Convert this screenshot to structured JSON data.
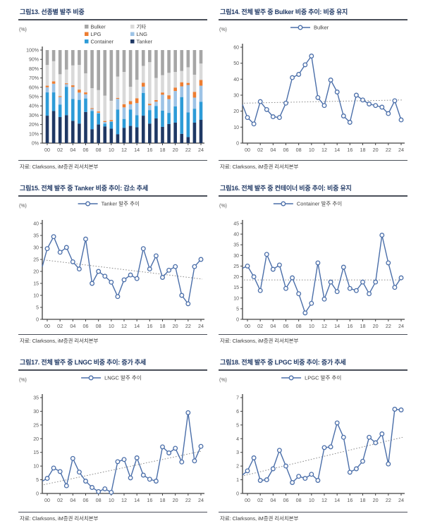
{
  "source_label": "자료: Clarksons, iM증권 리서치본부",
  "years": [
    "00",
    "01",
    "02",
    "03",
    "04",
    "05",
    "06",
    "07",
    "08",
    "09",
    "10",
    "11",
    "12",
    "13",
    "14",
    "15",
    "16",
    "17",
    "18",
    "19",
    "20",
    "21",
    "22",
    "23",
    "24"
  ],
  "x_ticklabels": [
    "00",
    "02",
    "04",
    "06",
    "08",
    "10",
    "12",
    "14",
    "16",
    "18",
    "20",
    "22",
    "24"
  ],
  "colors": {
    "line": "#4a6ea9",
    "trend": "#8c8c8c",
    "axis": "#404040",
    "tick_label": "#595959",
    "title": "#1f3864",
    "rule": "#4a4f59",
    "source_text": "#3f3f3f",
    "tanker": "#1f3864",
    "container": "#2d9bd7",
    "lng": "#9dc3e6",
    "lpg": "#ed7d31",
    "other": "#d9d9d9",
    "bulker": "#a6a6a6"
  },
  "chart_data": [
    {
      "id": "fig13",
      "type": "bar-stacked",
      "title": "그림13. 선종별 발주 비중",
      "unit": "(%)",
      "ylim": [
        0,
        100
      ],
      "ytick": 10,
      "ylabel_suffix": "%",
      "legend": [
        {
          "label": "Bulker",
          "color": "#a6a6a6"
        },
        {
          "label": "기타",
          "color": "#d9d9d9"
        },
        {
          "label": "LPG",
          "color": "#ed7d31"
        },
        {
          "label": "LNG",
          "color": "#9dc3e6"
        },
        {
          "label": "Container",
          "color": "#2d9bd7"
        },
        {
          "label": "Tanker",
          "color": "#1f3864"
        }
      ],
      "series": [
        {
          "name": "Tanker",
          "color": "#1f3864",
          "values": [
            29.5,
            34.5,
            28,
            30,
            24,
            21,
            33.5,
            15,
            20,
            18,
            15.5,
            9.5,
            16.5,
            18.5,
            17,
            29.5,
            21,
            26.5,
            17.5,
            20.5,
            22,
            10,
            6.5,
            22,
            25
          ]
        },
        {
          "name": "Container",
          "color": "#2d9bd7",
          "values": [
            25,
            20,
            13.5,
            30.5,
            23.5,
            25.5,
            14.5,
            19.5,
            12,
            3,
            7.5,
            26.5,
            9.5,
            17.5,
            13,
            24.5,
            14.5,
            13.5,
            17.5,
            12,
            17.5,
            39.5,
            26.5,
            15,
            19.5
          ]
        },
        {
          "name": "LNG",
          "color": "#9dc3e6",
          "values": [
            5.5,
            9.3,
            8,
            2.8,
            12.8,
            7.8,
            4.5,
            2.2,
            0.7,
            1.7,
            0.4,
            11.6,
            12.4,
            5.7,
            13,
            6.7,
            5.2,
            4.5,
            17,
            14.8,
            16.5,
            11.5,
            29.5,
            11.9,
            17.2
          ]
        },
        {
          "name": "LPG",
          "color": "#ed7d31",
          "values": [
            1.7,
            2.6,
            1,
            1,
            1.8,
            3.2,
            2,
            0.8,
            1.3,
            1.1,
            1.4,
            1,
            3.4,
            3.4,
            5.2,
            4.1,
            1.6,
            1.8,
            2.4,
            4.1,
            3.7,
            4.4,
            2.2,
            6.2,
            6.1
          ]
        },
        {
          "name": "기타",
          "color": "#d9d9d9",
          "values": [
            22.3,
            21.6,
            23.5,
            14.7,
            21.4,
            26.5,
            20.5,
            21.5,
            23,
            27.2,
            20.7,
            22.9,
            34.7,
            15.4,
            19.8,
            18.2,
            44.7,
            23.7,
            18.6,
            24.1,
            16.8,
            12.1,
            16.8,
            18.4,
            17.7
          ]
        },
        {
          "name": "Bulker",
          "color": "#a6a6a6",
          "values": [
            16,
            12,
            26,
            21,
            16.5,
            16,
            25,
            41,
            43,
            49,
            54.5,
            28.5,
            23.5,
            39.5,
            32,
            17,
            13,
            30,
            27,
            24.5,
            23.5,
            22.5,
            18.5,
            26.5,
            14.5
          ]
        }
      ]
    },
    {
      "id": "fig14",
      "type": "line",
      "title": "그림14. 전체 발주 중 Bulker 비중 추이: 비중 유지",
      "unit": "(%)",
      "legend_label": "Bulker",
      "ylim": [
        0,
        60
      ],
      "ytick": 10,
      "pre00": 24,
      "values": [
        16,
        12,
        26,
        21,
        16.5,
        16,
        25,
        41,
        43,
        49,
        54.5,
        28.5,
        23.5,
        39.5,
        32,
        17,
        13,
        30,
        27,
        24.5,
        23.5,
        22.5,
        18.5,
        26.5,
        14.5
      ],
      "trend": {
        "start": 25,
        "end": 27
      }
    },
    {
      "id": "fig15",
      "type": "line",
      "title": "그림15. 전체 발주 중 Tanker 비중 추이: 감소 추세",
      "unit": "(%)",
      "legend_label": "Tanker 발주 추이",
      "ylim": [
        0,
        40
      ],
      "ytick": 5,
      "pre00": 22,
      "values": [
        29.5,
        34.5,
        28,
        30,
        24,
        21,
        33.5,
        15,
        20,
        18,
        15.5,
        9.5,
        16.5,
        18.5,
        17,
        29.5,
        21,
        26.5,
        17.5,
        20.5,
        22,
        10,
        6.5,
        22,
        25
      ],
      "trend": {
        "start": 24.8,
        "end": 16.8
      }
    },
    {
      "id": "fig16",
      "type": "line",
      "title": "그림16. 전체 발주 중 컨테이너 비중 추이: 비중 유지",
      "unit": "(%)",
      "legend_label": "Container 발주 추이",
      "ylim": [
        0,
        45
      ],
      "ytick": 5,
      "pre00": 24,
      "values": [
        25,
        20,
        13.5,
        30.5,
        23.5,
        25.5,
        14.5,
        19.5,
        12,
        3,
        7.5,
        26.5,
        9.5,
        17.5,
        13,
        24.5,
        14.5,
        13.5,
        17.5,
        12,
        17.5,
        39.5,
        26.5,
        15,
        19.5
      ],
      "trend": {
        "start": 18.5,
        "end": 18.5
      }
    },
    {
      "id": "fig17",
      "type": "line",
      "title": "그림17. 전체 발주 중 LNGC 비중 추이: 증가 추세",
      "unit": "(%)",
      "legend_label": "LNGC 발주 추이",
      "ylim": [
        0,
        35
      ],
      "ytick": 5,
      "pre00": 4.5,
      "values": [
        5.5,
        9.3,
        8,
        2.8,
        12.8,
        7.8,
        4.5,
        2.2,
        0.7,
        1.7,
        0.4,
        11.6,
        12.4,
        5.7,
        13,
        6.7,
        5.2,
        4.5,
        17,
        14.8,
        16.5,
        11.5,
        29.5,
        11.9,
        17.2
      ],
      "trend": {
        "start": 3.2,
        "end": 15.5
      }
    },
    {
      "id": "fig18",
      "type": "line",
      "title": "그림18. 전체 발주 중 LPGC 비중 추이: 증가 추세",
      "unit": "(%)",
      "legend_label": "LPGC 발주 추이",
      "ylim": [
        0,
        7
      ],
      "ytick": 1,
      "pre00": 1.35,
      "values": [
        1.65,
        2.6,
        0.95,
        1,
        1.8,
        3.15,
        2,
        0.8,
        1.25,
        1.1,
        1.4,
        0.95,
        3.35,
        3.4,
        5.15,
        4.1,
        1.55,
        1.8,
        2.35,
        4.1,
        3.7,
        4.35,
        2.15,
        6.15,
        6.1
      ],
      "trend": {
        "start": 1.3,
        "end": 4.1
      }
    }
  ]
}
